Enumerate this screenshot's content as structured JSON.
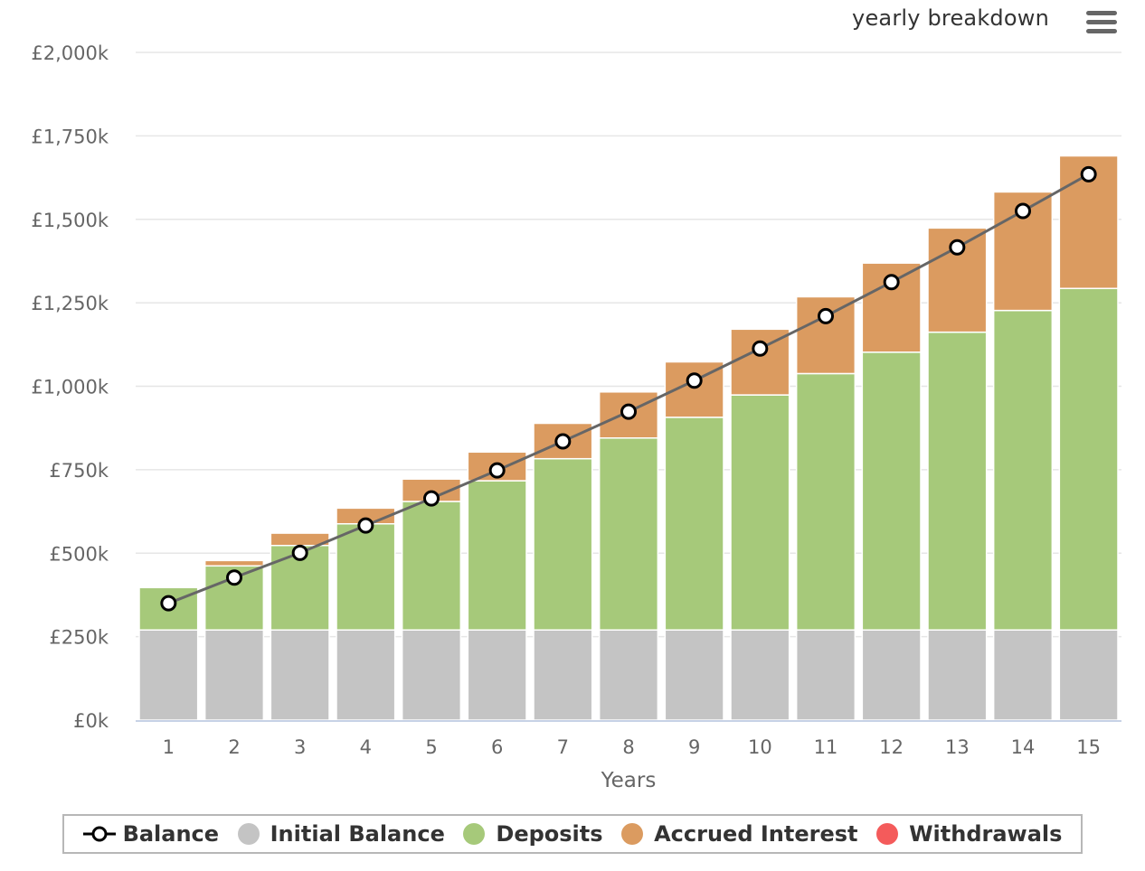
{
  "title": "yearly breakdown",
  "menu_icon": "hamburger-menu-icon",
  "colors": {
    "initial_balance": "#c4c4c4",
    "deposits": "#a6c97a",
    "accrued_interest": "#db9b60",
    "withdrawals": "#f45b5b",
    "balance_line": "#666666",
    "grid": "#e6e6e6",
    "axis": "#c7d2e6"
  },
  "legend": [
    {
      "key": "balance",
      "label": "Balance"
    },
    {
      "key": "initial_balance",
      "label": "Initial Balance"
    },
    {
      "key": "deposits",
      "label": "Deposits"
    },
    {
      "key": "accrued_interest",
      "label": "Accrued Interest"
    },
    {
      "key": "withdrawals",
      "label": "Withdrawals"
    }
  ],
  "chart_data": {
    "type": "bar",
    "stacked": true,
    "title": "yearly breakdown",
    "xlabel": "Years",
    "ylabel": "",
    "ylim": [
      0,
      2000000
    ],
    "yticks": [
      0,
      250000,
      500000,
      750000,
      1000000,
      1250000,
      1500000,
      1750000,
      2000000
    ],
    "ytick_labels": [
      "£0k",
      "£250k",
      "£500k",
      "£750k",
      "£1,000k",
      "£1,250k",
      "£1,500k",
      "£1,750k",
      "£2,000k"
    ],
    "grid": true,
    "legend_position": "bottom",
    "categories": [
      "1",
      "2",
      "3",
      "4",
      "5",
      "6",
      "7",
      "8",
      "9",
      "10",
      "11",
      "12",
      "13",
      "14",
      "15"
    ],
    "series": [
      {
        "name": "Initial Balance",
        "type": "bar",
        "values": [
          270000,
          270000,
          270000,
          270000,
          270000,
          270000,
          270000,
          270000,
          270000,
          270000,
          270000,
          270000,
          270000,
          270000,
          270000
        ]
      },
      {
        "name": "Deposits",
        "type": "bar",
        "values": [
          127000,
          192000,
          253000,
          318000,
          385000,
          447000,
          513000,
          575000,
          637000,
          704000,
          768000,
          832000,
          892000,
          957000,
          1023000
        ]
      },
      {
        "name": "Accrued Interest",
        "type": "bar",
        "values": [
          0,
          16000,
          37000,
          47000,
          67000,
          86000,
          106000,
          138000,
          166000,
          197000,
          230000,
          267000,
          312000,
          355000,
          397000
        ]
      },
      {
        "name": "Withdrawals",
        "type": "bar",
        "values": [
          0,
          0,
          0,
          0,
          0,
          0,
          0,
          0,
          0,
          0,
          0,
          0,
          0,
          0,
          0
        ]
      },
      {
        "name": "Balance",
        "type": "line",
        "values": [
          350000,
          427000,
          501000,
          583000,
          664000,
          748000,
          835000,
          924000,
          1017000,
          1113000,
          1210000,
          1312000,
          1416000,
          1525000,
          1635000
        ]
      }
    ]
  }
}
